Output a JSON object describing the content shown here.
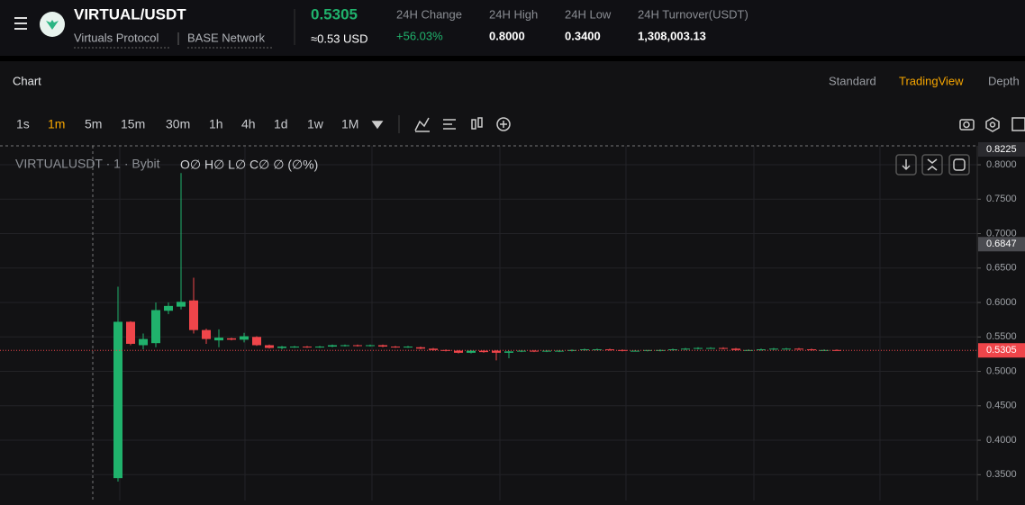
{
  "header": {
    "pair": "VIRTUAL/USDT",
    "protocol": "Virtuals Protocol",
    "network": "BASE Network",
    "last_price": "0.5305",
    "usd_price": "≈0.53 USD",
    "stats": [
      {
        "label": "24H Change",
        "value": "+56.03%"
      },
      {
        "label": "24H High",
        "value": "0.8000"
      },
      {
        "label": "24H Low",
        "value": "0.3400"
      },
      {
        "label": "24H Turnover(USDT)",
        "value": "1,308,003.13"
      }
    ]
  },
  "tabs": {
    "title": "Chart",
    "views": [
      "Standard",
      "TradingView",
      "Depth"
    ],
    "active_view": 1
  },
  "intervals": {
    "items": [
      "1s",
      "1m",
      "5m",
      "15m",
      "30m",
      "1h",
      "4h",
      "1d",
      "1w",
      "1M"
    ],
    "active": 1
  },
  "legend": {
    "symbol": "VIRTUALUSDT · 1 · Bybit",
    "ohlc": "O∅ H∅ L∅ C∅ ∅ (∅%)"
  },
  "chart_data": {
    "type": "candlestick",
    "up_color": "#20b26c",
    "down_color": "#ef454a",
    "grid": true,
    "ylim": [
      0.3125,
      0.8275
    ],
    "yticks": [
      {
        "value": 0.35,
        "label": "0.3500"
      },
      {
        "value": 0.4,
        "label": "0.4000"
      },
      {
        "value": 0.45,
        "label": "0.4500"
      },
      {
        "value": 0.5,
        "label": "0.5000"
      },
      {
        "value": 0.55,
        "label": "0.5500"
      },
      {
        "value": 0.6,
        "label": "0.6000"
      },
      {
        "value": 0.65,
        "label": "0.6500"
      },
      {
        "value": 0.7,
        "label": "0.7000"
      },
      {
        "value": 0.75,
        "label": "0.7500"
      },
      {
        "value": 0.8,
        "label": "0.8000"
      }
    ],
    "price_markers": [
      {
        "value": 0.8225,
        "label": "0.8225",
        "color": "#2a2a2e"
      },
      {
        "value": 0.6847,
        "label": "0.6847",
        "color": "#4a4b50"
      },
      {
        "value": 0.5305,
        "label": "0.5305",
        "color": "#ef454a"
      }
    ],
    "open": [
      0.345,
      0.572,
      0.538,
      0.541,
      0.588,
      0.594,
      0.603,
      0.56,
      0.545,
      0.548,
      0.546,
      0.55,
      0.538,
      0.534,
      0.535,
      0.536,
      0.535,
      0.536,
      0.537,
      0.538,
      0.537,
      0.538,
      0.536,
      0.535,
      0.535,
      0.533,
      0.531,
      0.53,
      0.527,
      0.53,
      0.53,
      0.527,
      0.529,
      0.53,
      0.53,
      0.529,
      0.53,
      0.531,
      0.532,
      0.532,
      0.531,
      0.53,
      0.53,
      0.53,
      0.531,
      0.532,
      0.533,
      0.534,
      0.534,
      0.533,
      0.531,
      0.531,
      0.532,
      0.533,
      0.533,
      0.532,
      0.531,
      0.531
    ],
    "high": [
      0.623,
      0.573,
      0.555,
      0.6,
      0.6,
      0.788,
      0.636,
      0.562,
      0.561,
      0.549,
      0.556,
      0.551,
      0.539,
      0.537,
      0.537,
      0.537,
      0.537,
      0.539,
      0.539,
      0.539,
      0.539,
      0.539,
      0.537,
      0.537,
      0.536,
      0.534,
      0.532,
      0.531,
      0.531,
      0.531,
      0.531,
      0.53,
      0.531,
      0.531,
      0.531,
      0.531,
      0.532,
      0.533,
      0.533,
      0.533,
      0.532,
      0.531,
      0.531,
      0.532,
      0.533,
      0.534,
      0.535,
      0.535,
      0.535,
      0.534,
      0.532,
      0.533,
      0.534,
      0.534,
      0.534,
      0.533,
      0.532,
      0.532
    ],
    "low": [
      0.34,
      0.538,
      0.532,
      0.535,
      0.583,
      0.59,
      0.555,
      0.54,
      0.535,
      0.545,
      0.542,
      0.537,
      0.533,
      0.532,
      0.534,
      0.534,
      0.534,
      0.535,
      0.536,
      0.536,
      0.536,
      0.535,
      0.534,
      0.534,
      0.532,
      0.53,
      0.529,
      0.526,
      0.526,
      0.527,
      0.516,
      0.519,
      0.528,
      0.528,
      0.528,
      0.528,
      0.529,
      0.53,
      0.531,
      0.53,
      0.529,
      0.529,
      0.529,
      0.529,
      0.53,
      0.531,
      0.532,
      0.533,
      0.532,
      0.53,
      0.53,
      0.53,
      0.531,
      0.532,
      0.531,
      0.53,
      0.53,
      0.53
    ],
    "close": [
      0.572,
      0.54,
      0.547,
      0.589,
      0.595,
      0.601,
      0.56,
      0.547,
      0.549,
      0.546,
      0.551,
      0.538,
      0.534,
      0.536,
      0.536,
      0.535,
      0.536,
      0.538,
      0.538,
      0.537,
      0.538,
      0.536,
      0.535,
      0.536,
      0.533,
      0.531,
      0.53,
      0.527,
      0.53,
      0.528,
      0.527,
      0.529,
      0.53,
      0.529,
      0.53,
      0.53,
      0.531,
      0.532,
      0.532,
      0.531,
      0.53,
      0.53,
      0.531,
      0.531,
      0.532,
      0.533,
      0.534,
      0.534,
      0.533,
      0.531,
      0.531,
      0.532,
      0.533,
      0.533,
      0.532,
      0.531,
      0.531,
      0.5305
    ]
  }
}
